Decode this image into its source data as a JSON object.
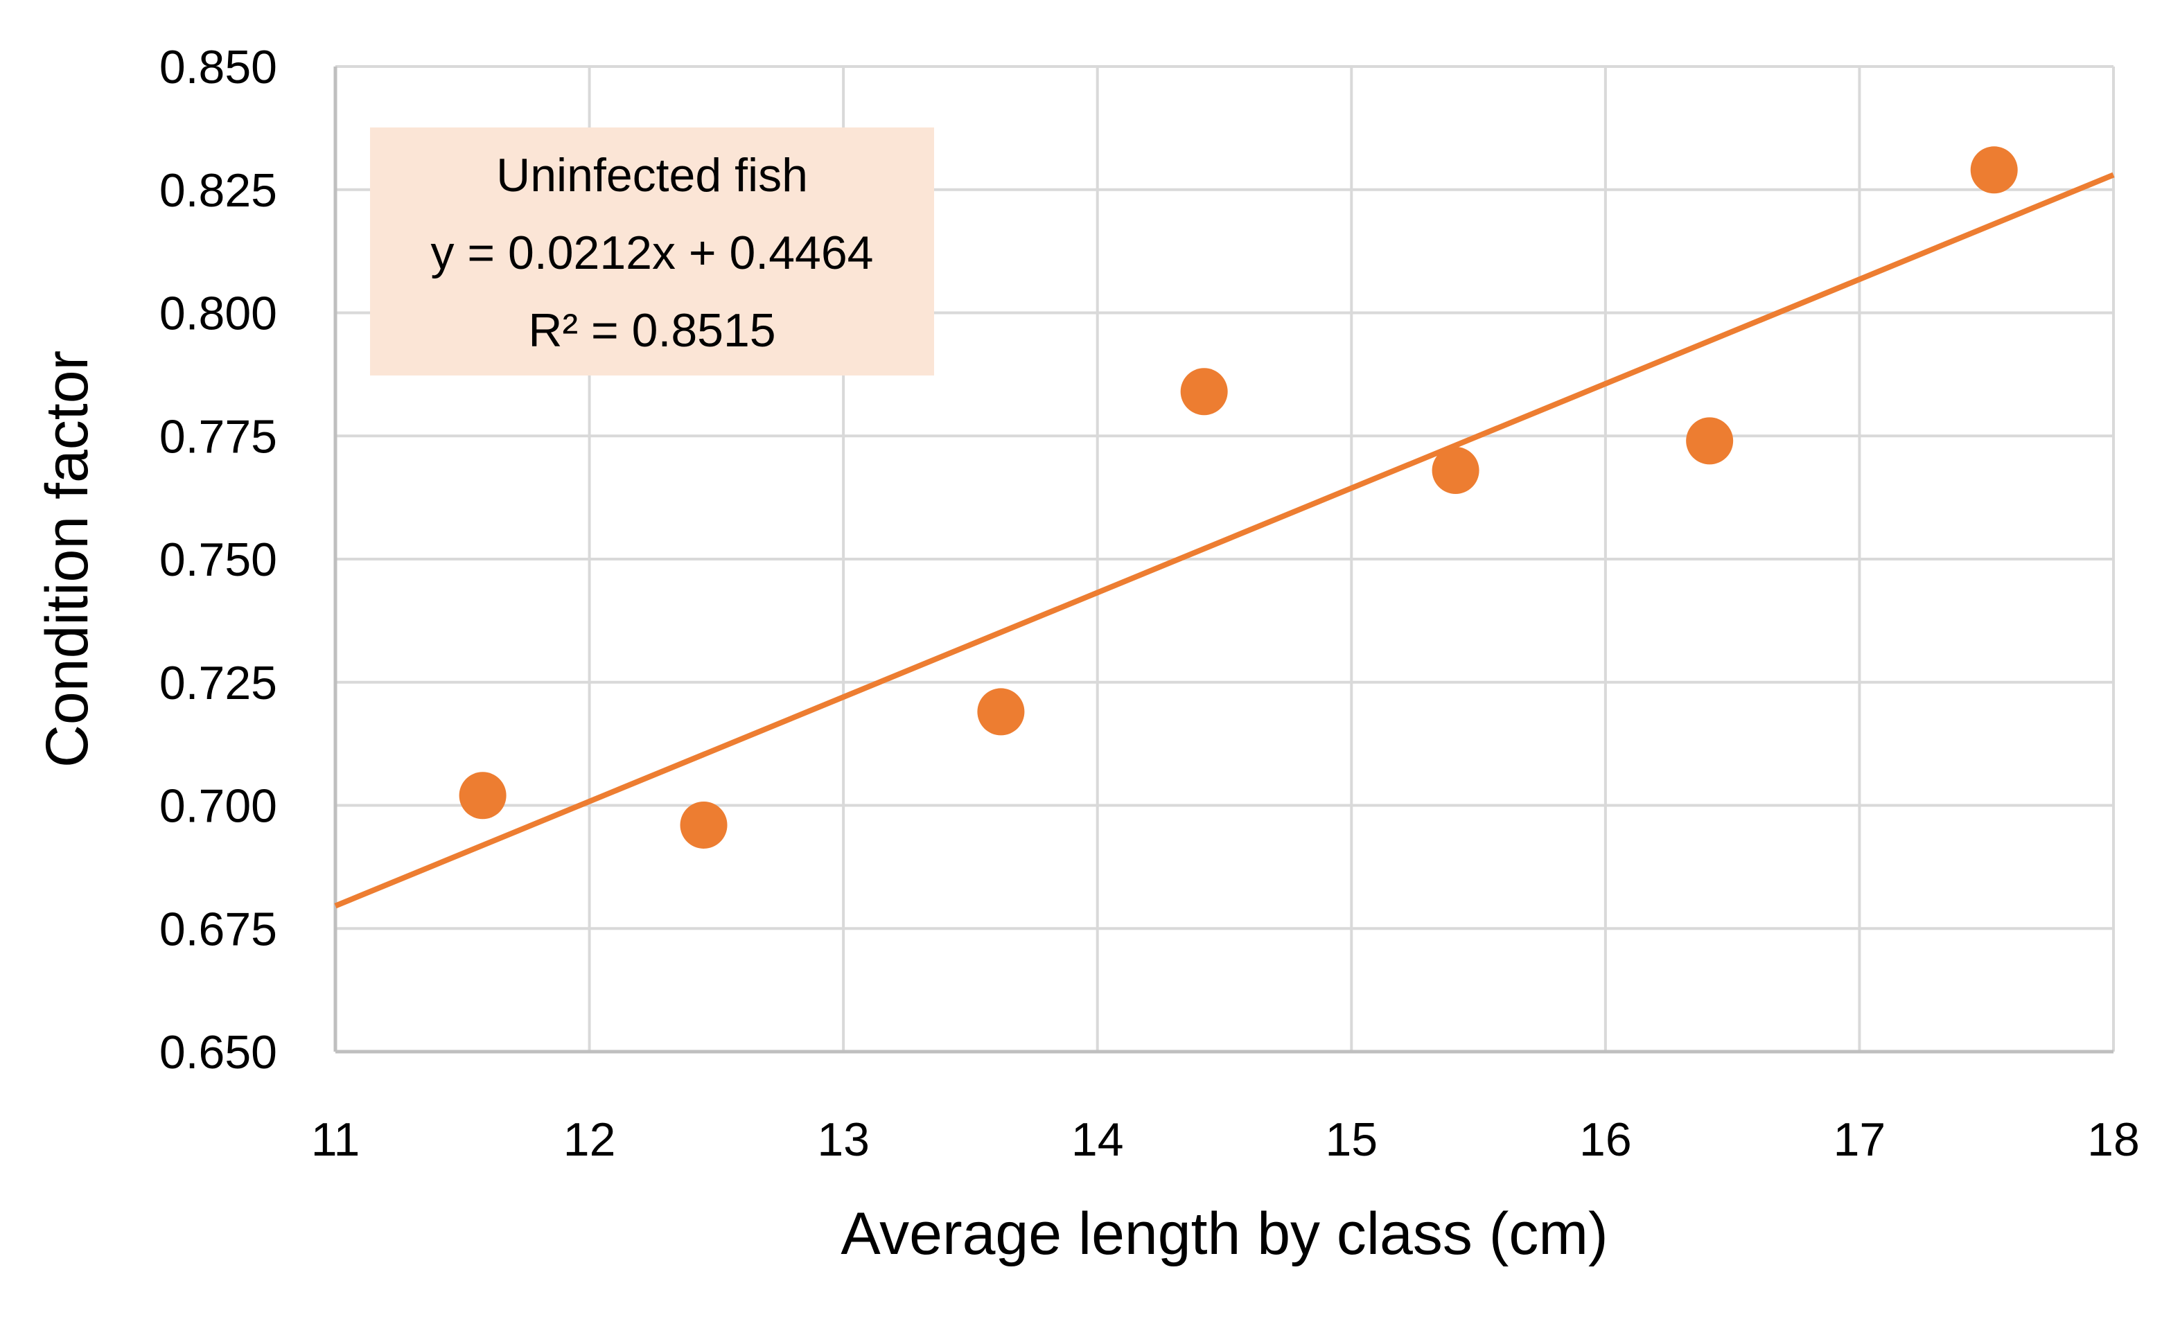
{
  "chart_data": {
    "type": "scatter",
    "title": "",
    "xlabel": "Average length by class (cm)",
    "ylabel": "Condition factor",
    "xlim": [
      11,
      18
    ],
    "ylim": [
      0.65,
      0.85
    ],
    "x_ticks": [
      11,
      12,
      13,
      14,
      15,
      16,
      17,
      18
    ],
    "y_ticks": [
      0.65,
      0.675,
      0.7,
      0.725,
      0.75,
      0.775,
      0.8,
      0.825,
      0.85
    ],
    "x_tick_labels": [
      "11",
      "12",
      "13",
      "14",
      "15",
      "16",
      "17",
      "18"
    ],
    "y_tick_labels": [
      "0.650",
      "0.675",
      "0.700",
      "0.725",
      "0.750",
      "0.775",
      "0.800",
      "0.825",
      "0.850"
    ],
    "grid": true,
    "series": [
      {
        "name": "Uninfected fish",
        "color": "#ED7D31",
        "x": [
          11.58,
          12.45,
          13.62,
          14.42,
          15.41,
          16.41,
          17.53
        ],
        "y": [
          0.702,
          0.696,
          0.719,
          0.784,
          0.768,
          0.774,
          0.829
        ]
      }
    ],
    "trendline": {
      "type": "linear",
      "color": "#ED7D31",
      "slope": 0.0212,
      "intercept": 0.4464,
      "x_range": [
        11,
        18
      ]
    },
    "annotation": {
      "lines": [
        "Uninfected fish",
        "y = 0.0212x + 0.4464",
        "R² = 0.8515"
      ],
      "background": "#FBE5D6",
      "position": "top-left"
    }
  }
}
